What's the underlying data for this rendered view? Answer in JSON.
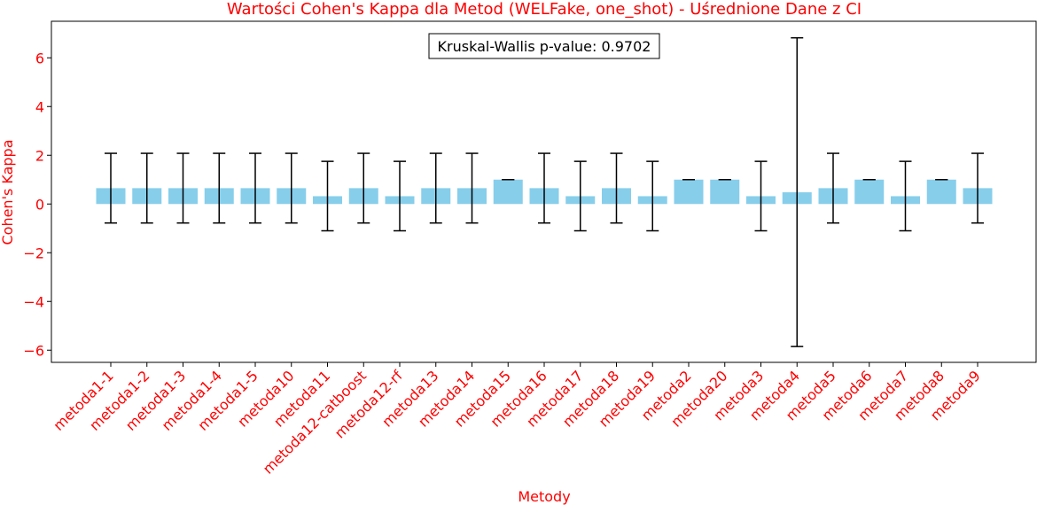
{
  "chart_data": {
    "type": "bar",
    "title": "Wartości Cohen's Kappa dla Metod (WELFake, one_shot) - Uśrednione Dane z CI",
    "xlabel": "Metody",
    "ylabel": "Cohen's Kappa",
    "ylim": [
      -6.5,
      7.5
    ],
    "yticks": [
      -6,
      -4,
      -2,
      0,
      2,
      4,
      6
    ],
    "ytick_labels": [
      "−6",
      "−4",
      "−2",
      "0",
      "2",
      "4",
      "6"
    ],
    "annotation": "Kruskal-Wallis p-value: 0.9702",
    "grid": false,
    "categories": [
      "metoda1-1",
      "metoda1-2",
      "metoda1-3",
      "metoda1-4",
      "metoda1-5",
      "metoda10",
      "metoda11",
      "metoda12-catboost",
      "metoda12-rf",
      "metoda13",
      "metoda14",
      "metoda15",
      "metoda16",
      "metoda17",
      "metoda18",
      "metoda19",
      "metoda2",
      "metoda20",
      "metoda3",
      "metoda4",
      "metoda5",
      "metoda6",
      "metoda7",
      "metoda8",
      "metoda9"
    ],
    "values": [
      0.65,
      0.65,
      0.65,
      0.65,
      0.65,
      0.65,
      0.32,
      0.65,
      0.32,
      0.65,
      0.65,
      1.0,
      0.65,
      0.32,
      0.65,
      0.32,
      1.0,
      1.0,
      0.32,
      0.48,
      0.65,
      1.0,
      0.32,
      1.0,
      0.65
    ],
    "ci_lower": [
      -0.78,
      -0.78,
      -0.78,
      -0.78,
      -0.78,
      -0.78,
      -1.1,
      -0.78,
      -1.1,
      -0.78,
      -0.78,
      1.0,
      -0.78,
      -1.1,
      -0.78,
      -1.1,
      1.0,
      1.0,
      -1.1,
      -5.85,
      -0.78,
      1.0,
      -1.1,
      1.0,
      -0.78
    ],
    "ci_upper": [
      2.08,
      2.08,
      2.08,
      2.08,
      2.08,
      2.08,
      1.75,
      2.08,
      1.75,
      2.08,
      2.08,
      1.0,
      2.08,
      1.75,
      2.08,
      1.75,
      1.0,
      1.0,
      1.75,
      6.82,
      2.08,
      1.0,
      1.75,
      1.0,
      2.08
    ],
    "colors": {
      "bar": "#87ceeb",
      "error": "#000000",
      "label": "#ff0000",
      "axis": "#000000"
    }
  }
}
